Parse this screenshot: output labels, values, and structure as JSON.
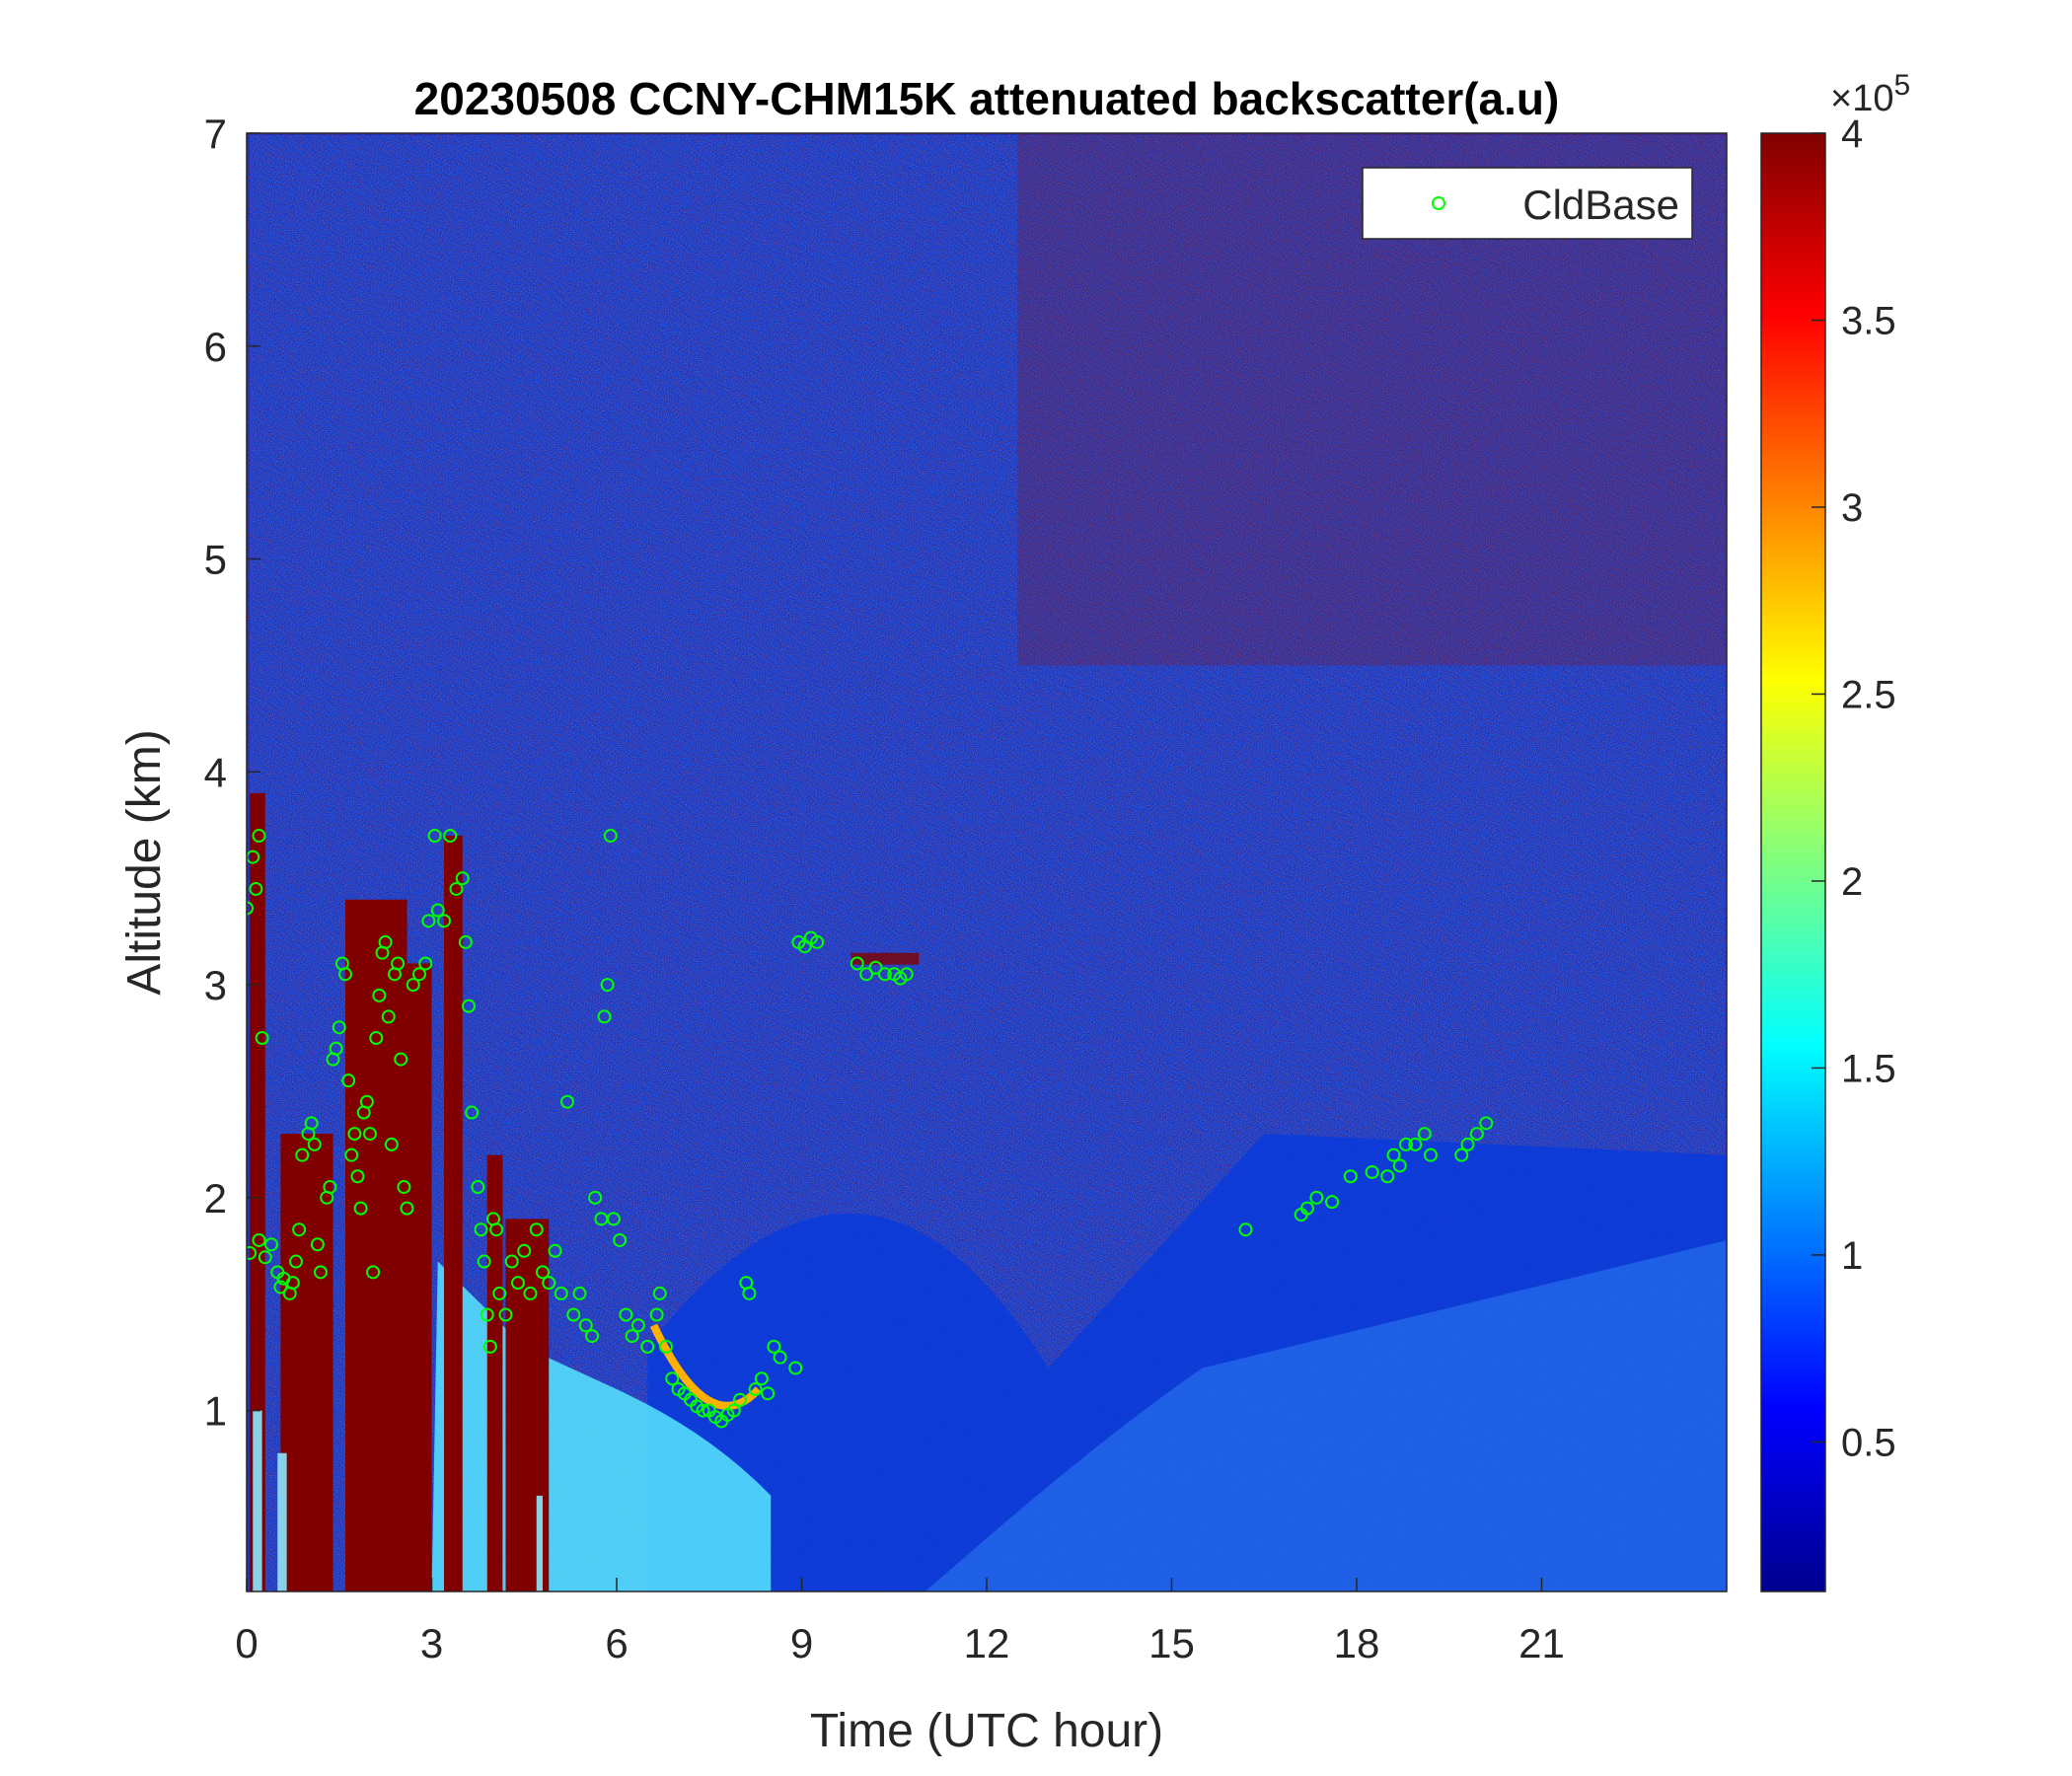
{
  "chart_data": {
    "type": "heatmap",
    "title": "20230508 CCNY-CHM15K attenuated backscatter(a.u)",
    "xlabel": "Time (UTC hour)",
    "ylabel": "Altitude (km)",
    "xlim": [
      0,
      24
    ],
    "ylim": [
      0.15,
      7
    ],
    "xticks": [
      "0",
      "3",
      "6",
      "9",
      "12",
      "15",
      "18",
      "21"
    ],
    "yticks": [
      "1",
      "2",
      "3",
      "4",
      "5",
      "6",
      "7"
    ],
    "colorbar": {
      "colormap": "jet",
      "clim": [
        0.1,
        4.0
      ],
      "ticks": [
        "0.5",
        "1",
        "1.5",
        "2",
        "2.5",
        "3",
        "3.5",
        "4"
      ],
      "exponent_base": "×10",
      "exponent_power": "5"
    },
    "legend": {
      "placement": "top-right",
      "entries": [
        "CldBase"
      ]
    },
    "series": [
      {
        "name": "CldBase",
        "marker": "circle",
        "color": "#00ff00",
        "points": [
          [
            0.0,
            3.36
          ],
          [
            0.05,
            1.74
          ],
          [
            0.1,
            3.6
          ],
          [
            0.15,
            3.45
          ],
          [
            0.2,
            3.7
          ],
          [
            0.25,
            2.75
          ],
          [
            0.2,
            1.8
          ],
          [
            0.3,
            1.72
          ],
          [
            0.4,
            1.78
          ],
          [
            0.5,
            1.65
          ],
          [
            0.55,
            1.58
          ],
          [
            0.6,
            1.62
          ],
          [
            0.7,
            1.55
          ],
          [
            0.75,
            1.6
          ],
          [
            0.8,
            1.7
          ],
          [
            0.85,
            1.85
          ],
          [
            0.9,
            2.2
          ],
          [
            1.0,
            2.3
          ],
          [
            1.05,
            2.35
          ],
          [
            1.1,
            2.25
          ],
          [
            1.15,
            1.78
          ],
          [
            1.2,
            1.65
          ],
          [
            1.3,
            2.0
          ],
          [
            1.35,
            2.05
          ],
          [
            1.4,
            2.65
          ],
          [
            1.45,
            2.7
          ],
          [
            1.5,
            2.8
          ],
          [
            1.55,
            3.1
          ],
          [
            1.6,
            3.05
          ],
          [
            1.65,
            2.55
          ],
          [
            1.7,
            2.2
          ],
          [
            1.75,
            2.3
          ],
          [
            1.8,
            2.1
          ],
          [
            1.85,
            1.95
          ],
          [
            1.9,
            2.4
          ],
          [
            1.95,
            2.45
          ],
          [
            2.0,
            2.3
          ],
          [
            2.05,
            1.65
          ],
          [
            2.1,
            2.75
          ],
          [
            2.15,
            2.95
          ],
          [
            2.2,
            3.15
          ],
          [
            2.25,
            3.2
          ],
          [
            2.3,
            2.85
          ],
          [
            2.35,
            2.25
          ],
          [
            2.4,
            3.05
          ],
          [
            2.45,
            3.1
          ],
          [
            2.5,
            2.65
          ],
          [
            2.55,
            2.05
          ],
          [
            2.6,
            1.95
          ],
          [
            2.7,
            3.0
          ],
          [
            2.8,
            3.05
          ],
          [
            2.9,
            3.1
          ],
          [
            2.95,
            3.3
          ],
          [
            3.05,
            3.7
          ],
          [
            3.1,
            3.35
          ],
          [
            3.2,
            3.3
          ],
          [
            3.3,
            3.7
          ],
          [
            3.4,
            3.45
          ],
          [
            3.5,
            3.5
          ],
          [
            3.55,
            3.2
          ],
          [
            3.6,
            2.9
          ],
          [
            3.65,
            2.4
          ],
          [
            3.75,
            2.05
          ],
          [
            3.8,
            1.85
          ],
          [
            3.85,
            1.7
          ],
          [
            3.9,
            1.45
          ],
          [
            3.95,
            1.3
          ],
          [
            4.0,
            1.9
          ],
          [
            4.05,
            1.85
          ],
          [
            4.1,
            1.55
          ],
          [
            4.2,
            1.45
          ],
          [
            4.3,
            1.7
          ],
          [
            4.4,
            1.6
          ],
          [
            4.5,
            1.75
          ],
          [
            4.6,
            1.55
          ],
          [
            4.7,
            1.85
          ],
          [
            4.8,
            1.65
          ],
          [
            4.9,
            1.6
          ],
          [
            5.0,
            1.75
          ],
          [
            5.1,
            1.55
          ],
          [
            5.2,
            2.45
          ],
          [
            5.3,
            1.45
          ],
          [
            5.4,
            1.55
          ],
          [
            5.5,
            1.4
          ],
          [
            5.6,
            1.35
          ],
          [
            5.65,
            2.0
          ],
          [
            5.75,
            1.9
          ],
          [
            5.8,
            2.85
          ],
          [
            5.85,
            3.0
          ],
          [
            5.9,
            3.7
          ],
          [
            5.95,
            1.9
          ],
          [
            6.05,
            1.8
          ],
          [
            6.15,
            1.45
          ],
          [
            6.25,
            1.35
          ],
          [
            6.35,
            1.4
          ],
          [
            6.5,
            1.3
          ],
          [
            6.65,
            1.45
          ],
          [
            6.7,
            1.55
          ],
          [
            6.8,
            1.3
          ],
          [
            6.9,
            1.15
          ],
          [
            7.0,
            1.1
          ],
          [
            7.1,
            1.08
          ],
          [
            7.2,
            1.05
          ],
          [
            7.3,
            1.02
          ],
          [
            7.4,
            1.0
          ],
          [
            7.5,
            1.0
          ],
          [
            7.6,
            0.97
          ],
          [
            7.7,
            0.95
          ],
          [
            7.8,
            0.98
          ],
          [
            7.9,
            1.0
          ],
          [
            8.0,
            1.05
          ],
          [
            8.1,
            1.6
          ],
          [
            8.15,
            1.55
          ],
          [
            8.25,
            1.1
          ],
          [
            8.35,
            1.15
          ],
          [
            8.45,
            1.08
          ],
          [
            8.55,
            1.3
          ],
          [
            8.65,
            1.25
          ],
          [
            8.9,
            1.2
          ],
          [
            8.95,
            3.2
          ],
          [
            9.05,
            3.18
          ],
          [
            9.15,
            3.22
          ],
          [
            9.25,
            3.2
          ],
          [
            9.9,
            3.1
          ],
          [
            10.05,
            3.05
          ],
          [
            10.2,
            3.08
          ],
          [
            10.35,
            3.05
          ],
          [
            10.5,
            3.05
          ],
          [
            10.6,
            3.03
          ],
          [
            10.7,
            3.05
          ],
          [
            16.2,
            1.85
          ],
          [
            17.1,
            1.92
          ],
          [
            17.2,
            1.95
          ],
          [
            17.35,
            2.0
          ],
          [
            17.6,
            1.98
          ],
          [
            17.9,
            2.1
          ],
          [
            18.25,
            2.12
          ],
          [
            18.5,
            2.1
          ],
          [
            18.6,
            2.2
          ],
          [
            18.7,
            2.15
          ],
          [
            18.8,
            2.25
          ],
          [
            18.95,
            2.25
          ],
          [
            19.1,
            2.3
          ],
          [
            19.2,
            2.2
          ],
          [
            19.7,
            2.2
          ],
          [
            19.8,
            2.25
          ],
          [
            19.95,
            2.3
          ],
          [
            20.1,
            2.35
          ]
        ]
      }
    ]
  }
}
